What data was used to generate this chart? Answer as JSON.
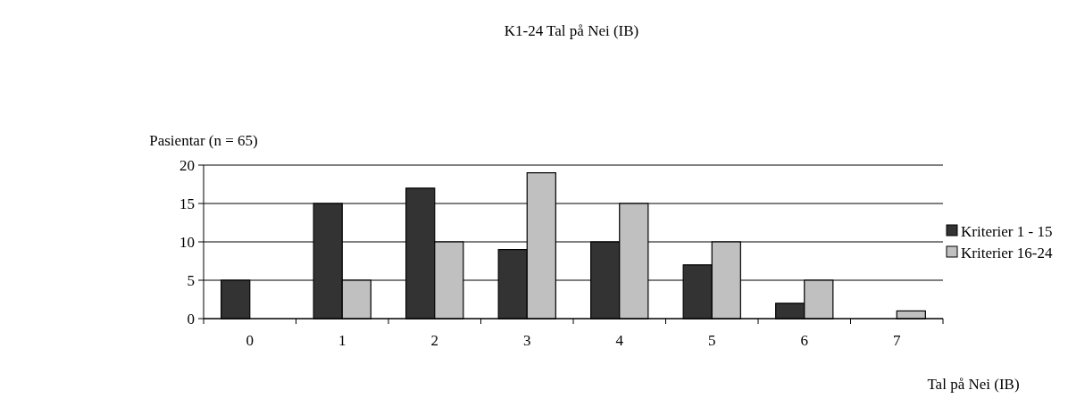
{
  "chart_data": {
    "type": "bar",
    "title": "K1-24 Tal på Nei (IB)",
    "xlabel": "Tal på Nei (IB)",
    "ylabel": "Pasientar (n = 65)",
    "categories": [
      "0",
      "1",
      "2",
      "3",
      "4",
      "5",
      "6",
      "7"
    ],
    "series": [
      {
        "name": "Kriterier 1 - 15",
        "color": "#333333",
        "values": [
          5,
          15,
          17,
          9,
          10,
          7,
          2,
          0
        ]
      },
      {
        "name": "Kriterier 16-24",
        "color": "#c0c0c0",
        "values": [
          0,
          5,
          10,
          19,
          15,
          10,
          5,
          1
        ]
      }
    ],
    "ylim": [
      0,
      20
    ],
    "yticks": [
      0,
      5,
      10,
      15,
      20
    ],
    "grid": "y",
    "legend": "right"
  }
}
